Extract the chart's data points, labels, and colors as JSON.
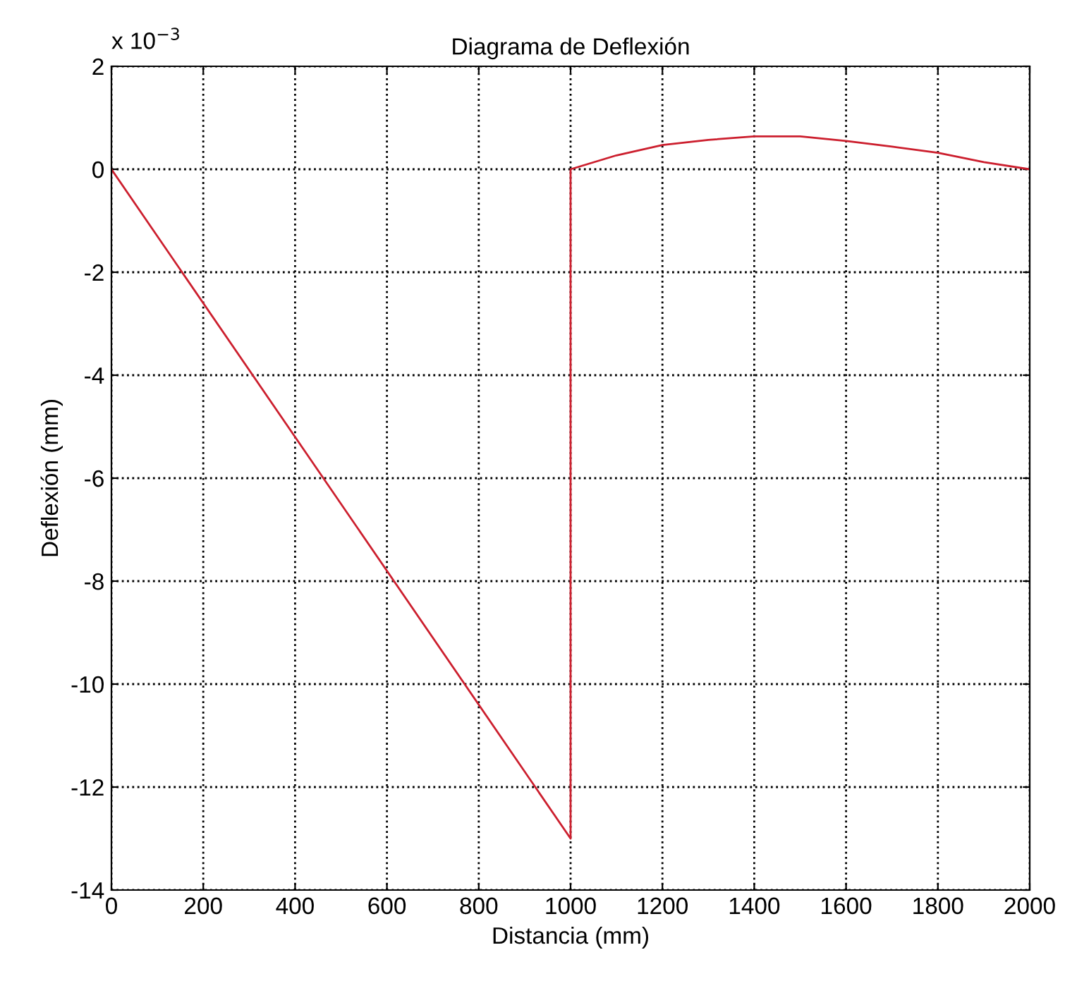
{
  "chart_data": {
    "type": "line",
    "title": "Diagrama de Deflexión",
    "xlabel": "Distancia (mm)",
    "ylabel": "Deflexión (mm)",
    "annotations": [
      "x 10$^{−3}$"
    ],
    "x": [
      0,
      1000,
      1000,
      1100,
      1200,
      1300,
      1400,
      1500,
      1600,
      1700,
      1800,
      1900,
      2000
    ],
    "series": [
      {
        "color": "#cc1f2e",
        "values": [
          0,
          -13,
          0,
          0.27,
          0.47,
          0.57,
          0.64,
          0.64,
          0.55,
          0.44,
          0.32,
          0.14,
          0
        ]
      }
    ],
    "xlim": [
      0,
      2000
    ],
    "xticks": [
      0,
      200,
      400,
      600,
      800,
      1000,
      1200,
      1400,
      1600,
      1800,
      2000
    ],
    "ylim": [
      -14,
      2
    ],
    "yticks": [
      -14,
      -12,
      -10,
      -8,
      -6,
      -4,
      -2,
      0,
      2
    ],
    "grid": true,
    "line_style": "solid",
    "marker": "none"
  }
}
